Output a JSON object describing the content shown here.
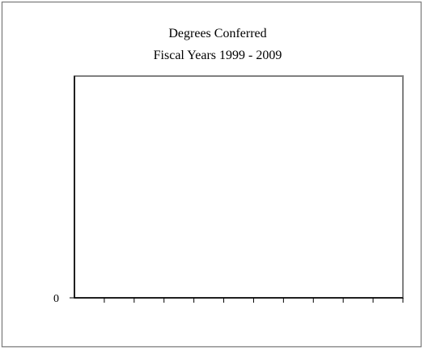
{
  "chart_data": {
    "type": "line",
    "title": "Degrees Conferred",
    "subtitle": "Fiscal Years 1999 - 2009",
    "xlabel": "",
    "ylabel": "",
    "ylim": [
      0,
      1
    ],
    "y_tick_labels": [
      "0"
    ],
    "x_tick_count": 11,
    "categories": [],
    "series": [],
    "grid": false,
    "legend": "none"
  },
  "colors": {
    "outer_border": "#7f7f7f",
    "plot_border": "#808080",
    "axis": "#000000",
    "background": "#ffffff"
  }
}
